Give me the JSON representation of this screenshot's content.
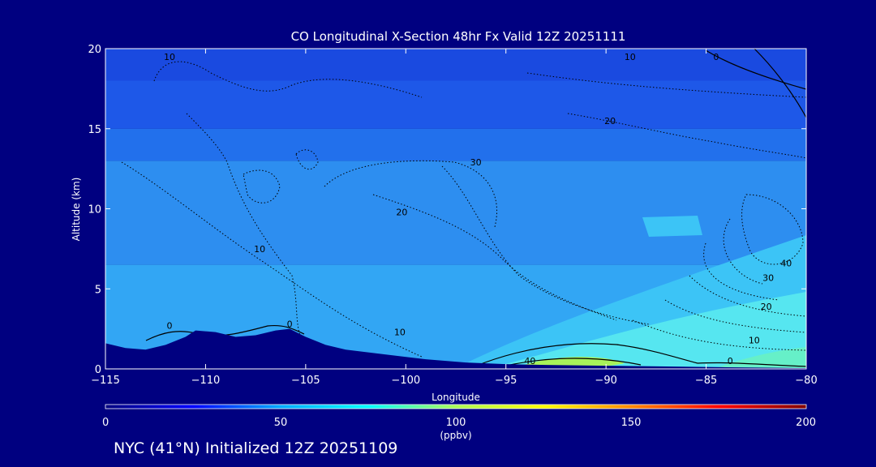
{
  "chart_data": {
    "type": "heatmap",
    "title": "CO Longitudinal X-Section 48hr  Fx Valid 12Z 20251111",
    "xlabel": "Longitude",
    "ylabel": "Altitude (km)",
    "xlim": [
      -115,
      -80
    ],
    "ylim": [
      0,
      20
    ],
    "xticks": [
      -115,
      -110,
      -105,
      -100,
      -95,
      -90,
      -85,
      -80
    ],
    "xtick_labels": [
      "−115",
      "−110",
      "−105",
      "−100",
      "−95",
      "−90",
      "−85",
      "−80"
    ],
    "yticks": [
      0,
      5,
      10,
      15,
      20
    ],
    "ytick_labels": [
      "0",
      "5",
      "10",
      "15",
      "20"
    ],
    "colorbar": {
      "range": [
        0,
        200
      ],
      "ticks": [
        0,
        50,
        100,
        150,
        200
      ],
      "tick_labels": [
        "0",
        "50",
        "100",
        "150",
        "200"
      ],
      "unit": "(ppbv)",
      "colors": [
        "#000080",
        "#0000ff",
        "#00aaff",
        "#00ffff",
        "#aaff55",
        "#ffff00",
        "#ff8800",
        "#ff0000",
        "#800000"
      ]
    },
    "field_bands": [
      {
        "altitude_km": [
          18,
          20
        ],
        "ppbv": 37,
        "color": "#1a4ae0"
      },
      {
        "altitude_km": [
          15,
          18
        ],
        "ppbv": 40,
        "color": "#1e58e8"
      },
      {
        "altitude_km": [
          13,
          15
        ],
        "ppbv": 50,
        "color": "#2270ec"
      },
      {
        "altitude_km": [
          6.5,
          13
        ],
        "ppbv": 62,
        "color": "#2d8ef0"
      },
      {
        "altitude_km": [
          0,
          6.5
        ],
        "ppbv": 75,
        "color": "#32a6f4"
      }
    ],
    "contour_labels": [
      {
        "text": "10",
        "lon": -111.8,
        "alt": 19.3
      },
      {
        "text": "10",
        "lon": -88.8,
        "alt": 19.3
      },
      {
        "text": "0",
        "lon": -84.5,
        "alt": 19.3
      },
      {
        "text": "20",
        "lon": -89.8,
        "alt": 15.3
      },
      {
        "text": "30",
        "lon": -96.5,
        "alt": 12.7
      },
      {
        "text": "20",
        "lon": -100.2,
        "alt": 9.6
      },
      {
        "text": "10",
        "lon": -107.3,
        "alt": 7.3
      },
      {
        "text": "40",
        "lon": -81.0,
        "alt": 6.4
      },
      {
        "text": "30",
        "lon": -81.9,
        "alt": 5.5
      },
      {
        "text": "20",
        "lon": -82.0,
        "alt": 3.7
      },
      {
        "text": "10",
        "lon": -82.6,
        "alt": 1.6
      },
      {
        "text": "0",
        "lon": -83.8,
        "alt": 0.3
      },
      {
        "text": "0",
        "lon": -111.8,
        "alt": 2.5
      },
      {
        "text": "0",
        "lon": -105.8,
        "alt": 2.6
      },
      {
        "text": "10",
        "lon": -100.3,
        "alt": 2.1
      },
      {
        "text": "40",
        "lon": -93.8,
        "alt": 0.3
      }
    ],
    "terrain_km": [
      [
        -115,
        1.6
      ],
      [
        -114.0,
        1.3
      ],
      [
        -113.0,
        1.2
      ],
      [
        -112.0,
        1.5
      ],
      [
        -111.0,
        2.0
      ],
      [
        -110.5,
        2.4
      ],
      [
        -109.5,
        2.3
      ],
      [
        -108.5,
        2.0
      ],
      [
        -107.5,
        2.1
      ],
      [
        -106.5,
        2.4
      ],
      [
        -105.8,
        2.5
      ],
      [
        -105.0,
        2.0
      ],
      [
        -104.0,
        1.5
      ],
      [
        -103.0,
        1.2
      ],
      [
        -101.0,
        0.9
      ],
      [
        -99.0,
        0.6
      ],
      [
        -97.0,
        0.4
      ],
      [
        -95.0,
        0.3
      ],
      [
        -93.0,
        0.25
      ],
      [
        -90.0,
        0.2
      ],
      [
        -87.0,
        0.15
      ],
      [
        -84.0,
        0.1
      ],
      [
        -80.0,
        0.05
      ]
    ],
    "footer": "NYC (41°N) Initialized 12Z 20251109"
  }
}
